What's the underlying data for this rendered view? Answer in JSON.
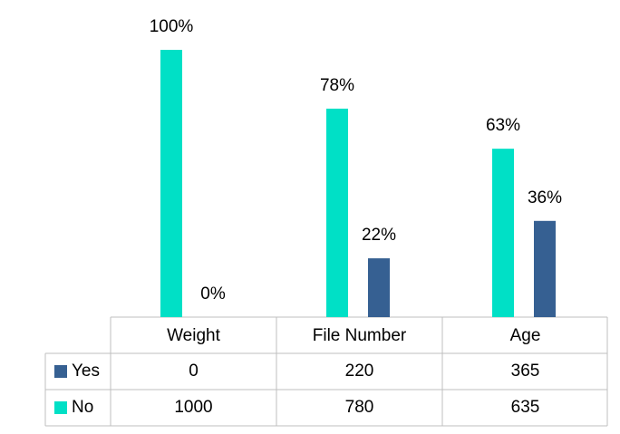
{
  "chart_data": {
    "type": "bar",
    "categories": [
      "Weight",
      "File Number",
      "Age"
    ],
    "series": [
      {
        "name": "Yes",
        "color": "#366092",
        "values": [
          0,
          22,
          36
        ],
        "value_labels": [
          "0%",
          "22%",
          "36%"
        ],
        "counts": [
          0,
          220,
          365
        ]
      },
      {
        "name": "No",
        "color": "#00e0c6",
        "values": [
          100,
          78,
          63
        ],
        "value_labels": [
          "100%",
          "78%",
          "63%"
        ],
        "counts": [
          1000,
          780,
          635
        ]
      }
    ]
  }
}
